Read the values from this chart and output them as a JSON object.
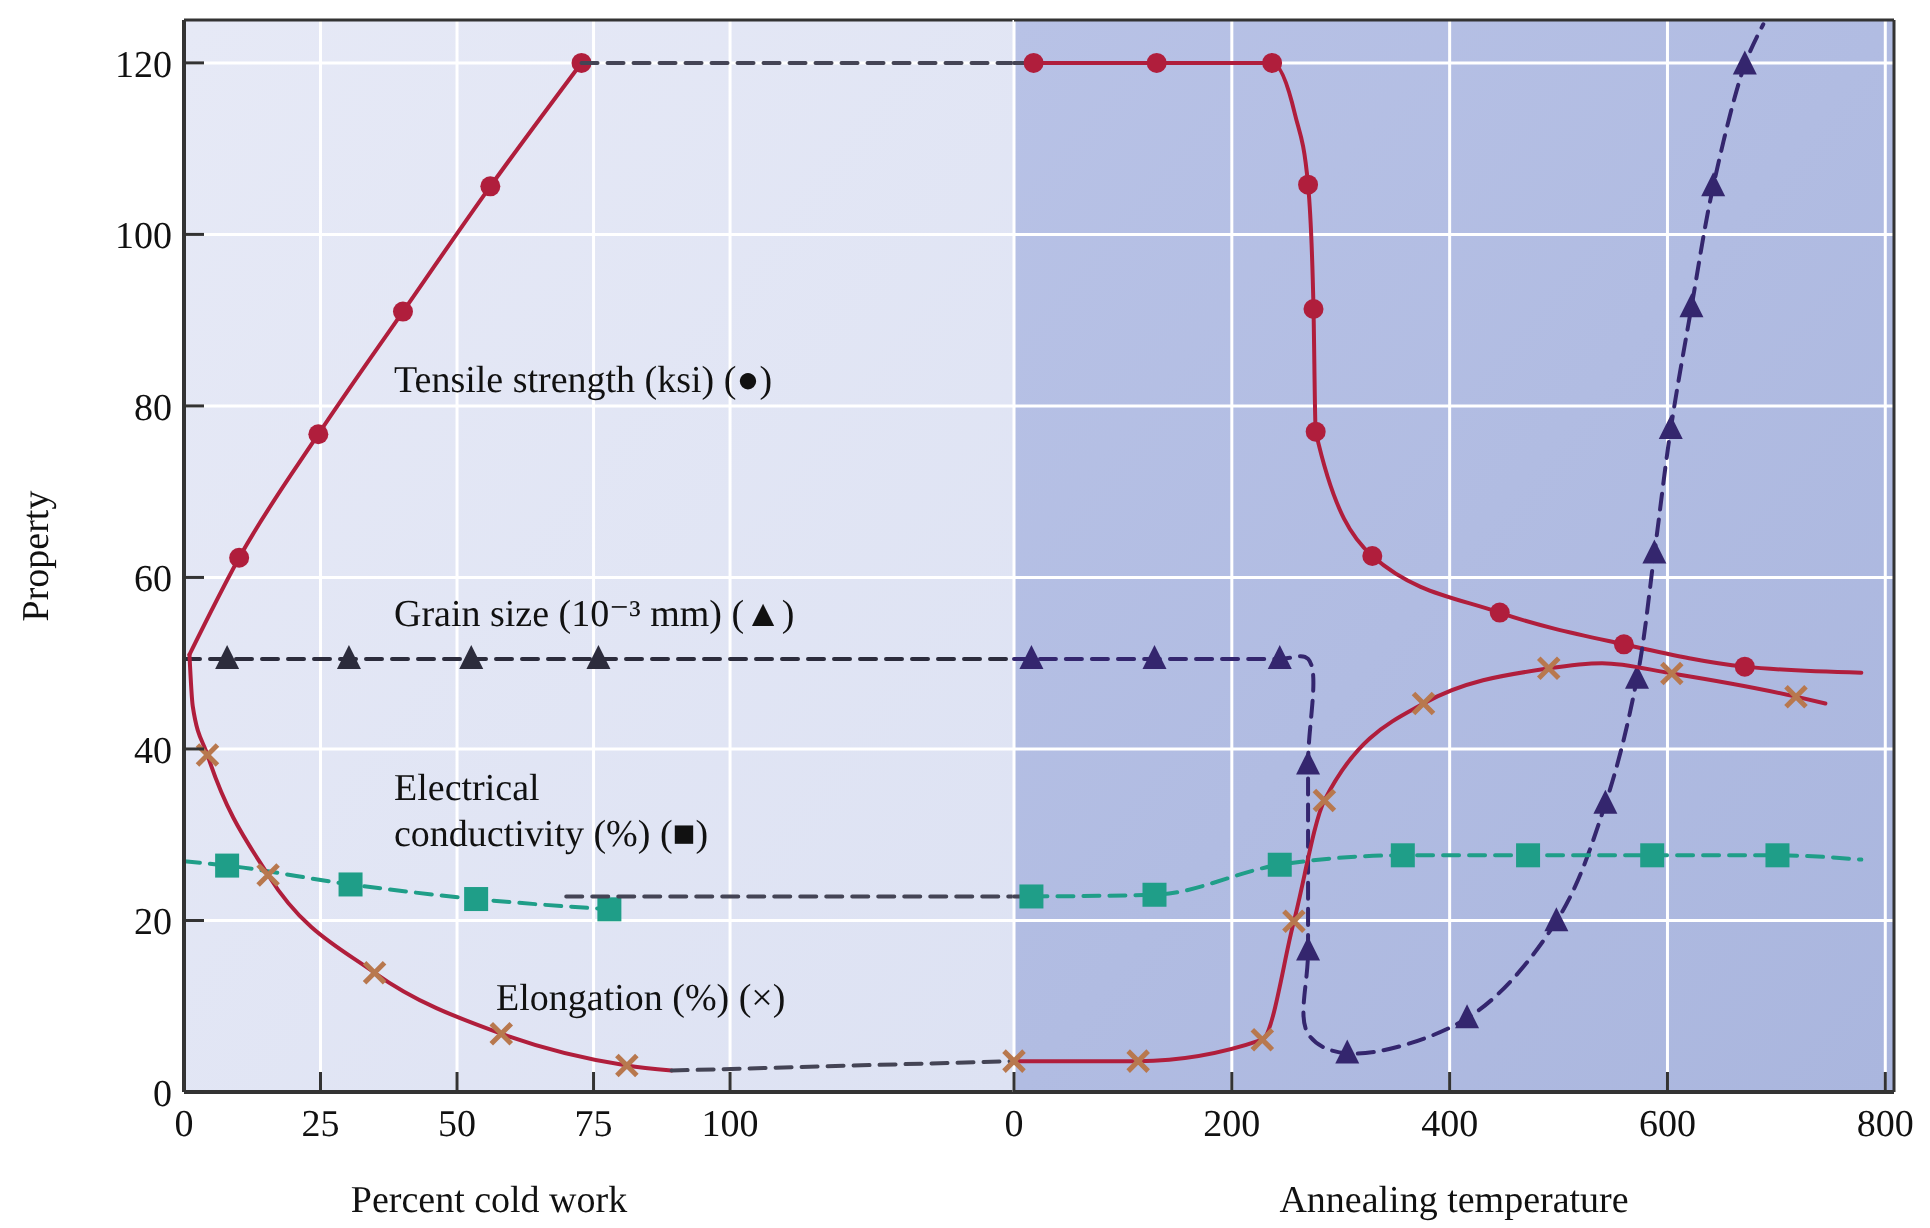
{
  "chart_data": [
    {
      "type": "line",
      "xlabel": "Percent cold work",
      "ylabel": "Property",
      "xlim": [
        0,
        152
      ],
      "xticks": [
        0,
        25,
        50,
        75,
        100
      ],
      "ylim": [
        0,
        125
      ],
      "yticks": [
        0,
        20,
        40,
        60,
        80,
        100,
        120
      ],
      "grid": true,
      "series": [
        {
          "type": "line",
          "color": "#b01e3c",
          "line_style": "solid",
          "marker": "none",
          "x": [
            1,
            10.1,
            24.6,
            40.1,
            56.1,
            72.8
          ],
          "values": [
            51,
            62.3,
            76.7,
            91,
            105.6,
            120
          ]
        },
        {
          "type": "scatter",
          "color": "#b01e3c",
          "marker": "circle",
          "x": [
            10.1,
            24.6,
            40.1,
            56.1,
            72.8
          ],
          "values": [
            62.3,
            76.7,
            91,
            105.6,
            120
          ]
        },
        {
          "type": "line",
          "color": "#444455",
          "line_style": "dashed",
          "marker": "none",
          "x": [
            72.8,
            152
          ],
          "values": [
            120,
            120
          ]
        },
        {
          "type": "line",
          "color": "#2c2c3c",
          "line_style": "dashed",
          "marker": "none",
          "x": [
            0,
            152
          ],
          "values": [
            50.5,
            50.5
          ]
        },
        {
          "type": "scatter",
          "color": "#2c2c3c",
          "marker": "triangle",
          "x": [
            7.9,
            30.2,
            52.6,
            75.9
          ],
          "values": [
            50.5,
            50.5,
            50.5,
            50.5
          ]
        },
        {
          "type": "line",
          "color": "#1f9e88",
          "line_style": "dashed",
          "marker": "none",
          "x": [
            0,
            7.9,
            30.5,
            53.5,
            77.9
          ],
          "values": [
            26.9,
            26.4,
            24.2,
            22.5,
            21.3
          ]
        },
        {
          "type": "scatter",
          "color": "#1f9e88",
          "marker": "square",
          "x": [
            7.9,
            30.5,
            53.5,
            77.9
          ],
          "values": [
            26.4,
            24.2,
            22.5,
            21.3
          ]
        },
        {
          "type": "line",
          "color": "#444455",
          "line_style": "dashed",
          "marker": "none",
          "x": [
            70,
            152
          ],
          "values": [
            22.8,
            22.8
          ]
        },
        {
          "type": "line",
          "color": "#b01e3c",
          "line_style": "solid",
          "marker": "none",
          "x": [
            1,
            1.6,
            4.3,
            15.4,
            34.9,
            58.1,
            81.1,
            89.3
          ],
          "values": [
            51,
            45,
            39.3,
            25.3,
            13.9,
            6.8,
            3.1,
            2.5
          ]
        },
        {
          "type": "scatter",
          "color": "#b8784e",
          "marker": "cross",
          "x": [
            4.3,
            15.4,
            34.9,
            58.1,
            81.1
          ],
          "values": [
            39.3,
            25.3,
            13.9,
            6.8,
            3.1
          ]
        },
        {
          "type": "line",
          "color": "#444455",
          "line_style": "dashed",
          "marker": "none",
          "x": [
            89.3,
            152
          ],
          "values": [
            2.5,
            3.6
          ]
        }
      ],
      "annotations": [
        "Tensile strength (ksi) (●)",
        "Grain size (10⁻³ mm) (▲)",
        "Electrical\nconductivity (%) (■)",
        "Elongation (%) (×)"
      ]
    },
    {
      "type": "line",
      "xlabel": "Annealing temperature",
      "xlim": [
        0,
        808
      ],
      "xticks": [
        0,
        200,
        400,
        600,
        800
      ],
      "ylim": [
        0,
        125
      ],
      "yticks": [
        0,
        20,
        40,
        60,
        80,
        100,
        120
      ],
      "grid": true,
      "tick_labels": "x",
      "series": [
        {
          "type": "line",
          "color": "#444455",
          "line_style": "dashed",
          "marker": "none",
          "x": [
            0,
            18
          ],
          "values": [
            120,
            120
          ]
        },
        {
          "type": "line",
          "color": "#b01e3c",
          "line_style": "solid",
          "marker": "none",
          "x": [
            18,
            131,
            237,
            258,
            270,
            275,
            277,
            329,
            446,
            560,
            671,
            778
          ],
          "values": [
            120,
            120,
            120,
            114,
            105.8,
            91.3,
            77,
            62.5,
            55.9,
            52.2,
            49.6,
            48.9
          ]
        },
        {
          "type": "scatter",
          "color": "#b01e3c",
          "marker": "circle",
          "x": [
            18,
            131,
            237,
            270,
            275,
            277,
            329,
            446,
            560,
            671
          ],
          "values": [
            120,
            120,
            120,
            105.8,
            91.3,
            77,
            62.5,
            55.9,
            52.2,
            49.6
          ]
        },
        {
          "type": "line",
          "color": "#34266e",
          "line_style": "dashed",
          "marker": "none",
          "x": [
            0,
            16,
            129,
            244,
            270,
            270,
            270,
            270,
            306,
            416,
            498,
            543,
            572,
            588,
            603,
            622,
            642,
            671,
            688
          ],
          "values": [
            50.5,
            50.5,
            50.5,
            50.5,
            50.5,
            38.2,
            16.5,
            6.8,
            4.5,
            8.6,
            19.9,
            33.6,
            48.2,
            62.8,
            77.3,
            91.5,
            105.6,
            119.8,
            124.5
          ]
        },
        {
          "type": "scatter",
          "color": "#34266e",
          "marker": "triangle",
          "x": [
            16,
            129,
            244,
            270,
            270,
            306,
            416,
            498,
            543,
            572,
            588,
            603,
            622,
            642,
            671
          ],
          "values": [
            50.5,
            50.5,
            50.5,
            38.2,
            16.5,
            4.5,
            8.6,
            19.9,
            33.6,
            48.2,
            62.8,
            77.3,
            91.5,
            105.6,
            119.8
          ]
        },
        {
          "type": "line",
          "color": "#444455",
          "line_style": "dashed",
          "marker": "none",
          "x": [
            0,
            16
          ],
          "values": [
            22.8,
            22.8
          ]
        },
        {
          "type": "line",
          "color": "#1f9e88",
          "line_style": "dashed",
          "marker": "none",
          "x": [
            16,
            129,
            244,
            357,
            472,
            586,
            701,
            778
          ],
          "values": [
            22.8,
            23,
            26.5,
            27.6,
            27.6,
            27.6,
            27.6,
            27.1
          ]
        },
        {
          "type": "scatter",
          "color": "#1f9e88",
          "marker": "square",
          "x": [
            16,
            129,
            244,
            357,
            472,
            586,
            701
          ],
          "values": [
            22.8,
            23,
            26.5,
            27.6,
            27.6,
            27.6,
            27.6
          ]
        },
        {
          "type": "line",
          "color": "#b01e3c",
          "line_style": "solid",
          "marker": "none",
          "x": [
            0,
            114,
            228,
            257,
            285,
            376,
            491,
            540,
            604,
            718,
            745
          ],
          "values": [
            3.6,
            3.6,
            6.1,
            19.9,
            34,
            45.3,
            49.4,
            50,
            48.8,
            46.1,
            45.3
          ]
        },
        {
          "type": "scatter",
          "color": "#b8784e",
          "marker": "cross",
          "x": [
            0,
            114,
            228,
            257,
            285,
            376,
            491,
            604,
            718
          ],
          "values": [
            3.6,
            3.6,
            6.1,
            19.9,
            34,
            45.3,
            49.4,
            48.8,
            46.1
          ]
        }
      ]
    }
  ]
}
